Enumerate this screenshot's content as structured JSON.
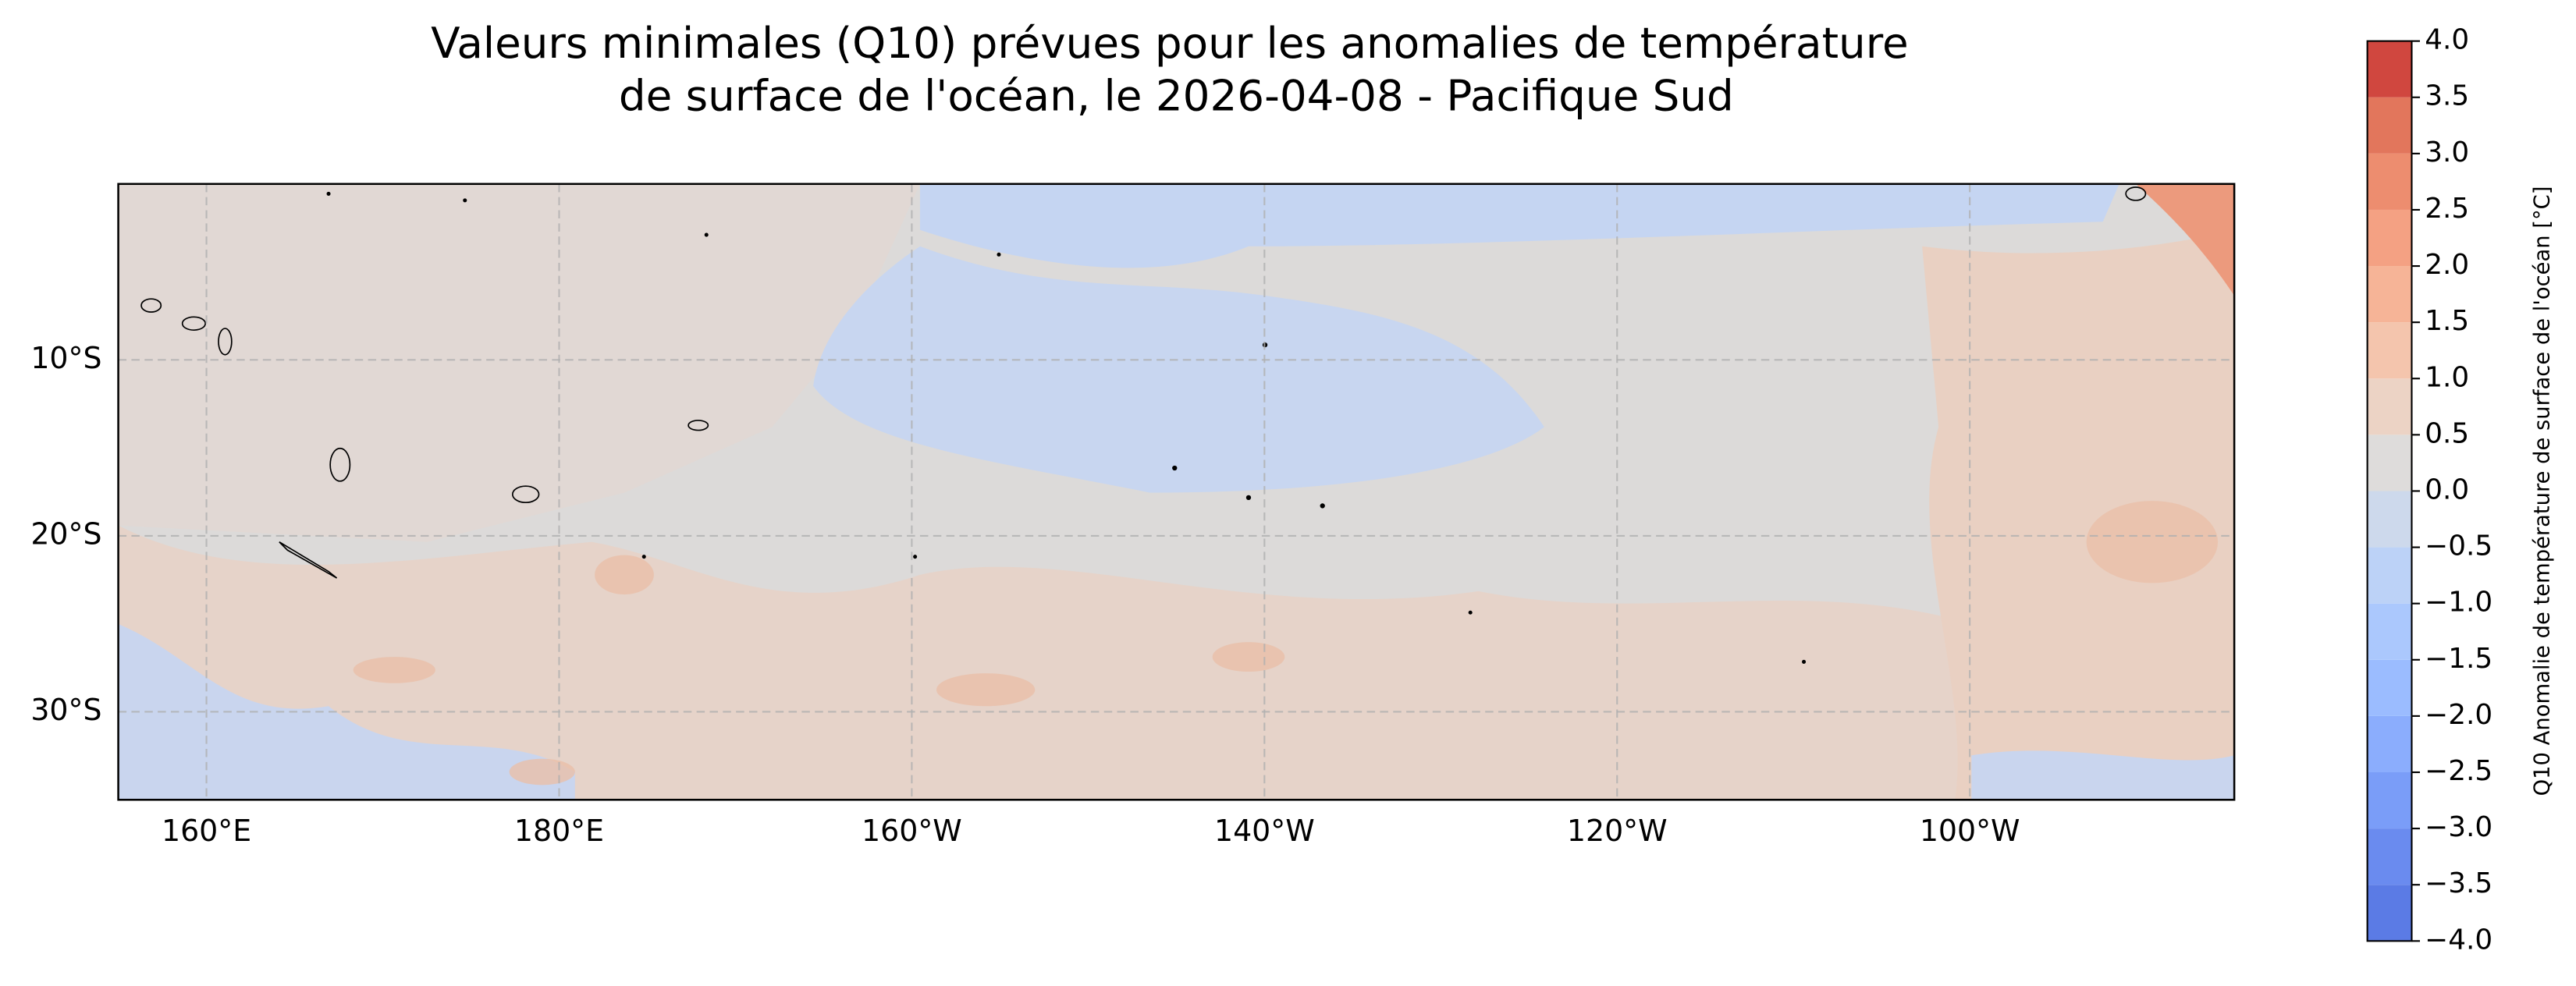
{
  "title": [
    "Valeurs minimales (Q10) prévues pour les anomalies de température",
    "de surface de l'océan, le 2026-04-08 - Pacifique Sud"
  ],
  "map": {
    "xlim": [
      155,
      275
    ],
    "ylim": [
      -35,
      0
    ],
    "grid": true,
    "xticks": [
      {
        "value": 160,
        "label": "160°E"
      },
      {
        "value": 180,
        "label": "180°E"
      },
      {
        "value": 200,
        "label": "160°W"
      },
      {
        "value": 220,
        "label": "140°W"
      },
      {
        "value": 240,
        "label": "120°W"
      },
      {
        "value": 260,
        "label": "100°W"
      }
    ],
    "yticks": [
      {
        "value": -10,
        "label": "10°S"
      },
      {
        "value": -20,
        "label": "20°S"
      },
      {
        "value": -30,
        "label": "30°S"
      }
    ]
  },
  "colorbar": {
    "label": "Q10 Anomalie de température de surface de l'océan [°C]",
    "lim": [
      -4,
      4
    ],
    "ticks": [
      {
        "value": -4,
        "label": "−4.0"
      },
      {
        "value": -3.5,
        "label": "−3.5"
      },
      {
        "value": -3,
        "label": "−3.0"
      },
      {
        "value": -2.5,
        "label": "−2.5"
      },
      {
        "value": -2,
        "label": "−2.0"
      },
      {
        "value": -1.5,
        "label": "−1.5"
      },
      {
        "value": -1,
        "label": "−1.0"
      },
      {
        "value": -0.5,
        "label": "−0.5"
      },
      {
        "value": 0,
        "label": "0.0"
      },
      {
        "value": 0.5,
        "label": "0.5"
      },
      {
        "value": 1,
        "label": "1.0"
      },
      {
        "value": 1.5,
        "label": "1.5"
      },
      {
        "value": 2,
        "label": "2.0"
      },
      {
        "value": 2.5,
        "label": "2.5"
      },
      {
        "value": 3,
        "label": "3.0"
      },
      {
        "value": 3.5,
        "label": "3.5"
      },
      {
        "value": 4,
        "label": "4.0"
      }
    ],
    "colors": [
      "#5b7be5",
      "#6a8bef",
      "#7a9df8",
      "#8badfd",
      "#9bbcff",
      "#abc8fd",
      "#bcd2f7",
      "#cdd9ec",
      "#dedcdb",
      "#ecd3c5",
      "#f4c5ad",
      "#f6b497",
      "#f4a183",
      "#ed8d6f",
      "#e2765c",
      "#d0473f"
    ]
  }
}
